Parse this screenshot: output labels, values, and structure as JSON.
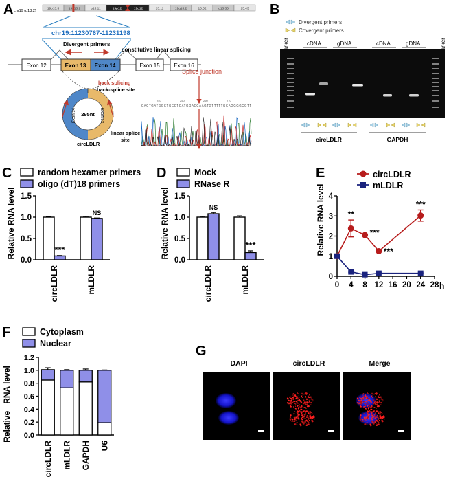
{
  "panels": {
    "A": {
      "letter": "A",
      "chrom_label": "chr19 (p13.2)",
      "bands": [
        "19p13.3",
        "19p13.2",
        "p13.11",
        "19p12",
        "19q12",
        "13.11",
        "19q13.2",
        "13.32",
        "q13.33",
        "13.43"
      ],
      "coord": "chr19:11230767-11231198",
      "divergent_primers": "Divergent primers",
      "constitutive": "constitutive linear splicing",
      "exons": [
        "Exon 12",
        "Exon 13",
        "Exon 14",
        "Exon 15",
        "Exon 16"
      ],
      "back_splicing": "back splicing",
      "back_splice_site": "back-splice site",
      "circle_size": "295nt",
      "circle_exon_left": "Exon 14",
      "circle_exon_right": "Exon 13",
      "linear_splice": "linear splice",
      "site": "site",
      "circ_name": "circLDLR",
      "splice_junction": "Splice junction",
      "seq_numbers": [
        "240",
        "250",
        "260",
        "270"
      ],
      "sequence": "CACTGATGGCTGCCTCATGGACCAAGTGTTTTTGCAGGGGCGTT",
      "colors": {
        "exon13": "#e8b96a",
        "exon14": "#4f87c8",
        "arrow": "#c0392b",
        "line": "#2a7fc1"
      }
    },
    "B": {
      "letter": "B",
      "legend_divergent": "Divergent primers",
      "legend_convergent": "Covergent primers",
      "lane_labels": [
        "marker",
        "cDNA",
        "gDNA",
        "cDNA",
        "gDNA",
        "marker"
      ],
      "group_labels": [
        "circLDLR",
        "GAPDH"
      ]
    },
    "C": {
      "letter": "C",
      "legend": [
        "random hexamer primers",
        "oligo (dT)18 primers"
      ],
      "ylabel": "Relative RNA level",
      "ticks": [
        "0.0",
        "0.5",
        "1.0",
        "1.5"
      ],
      "categories": [
        "circLDLR",
        "mLDLR"
      ],
      "annotations": [
        "***",
        "NS"
      ]
    },
    "D": {
      "letter": "D",
      "legend": [
        "Mock",
        "RNase R"
      ],
      "ylabel": "Relative RNA level",
      "ticks": [
        "0.0",
        "0.5",
        "1.0",
        "1.5"
      ],
      "categories": [
        "circLDLR",
        "mLDLR"
      ],
      "annotations": [
        "NS",
        "***"
      ]
    },
    "E": {
      "letter": "E",
      "legend": [
        "circLDLR",
        "mLDLR"
      ],
      "ylabel": "Relative RNA level",
      "yticks": [
        "0",
        "1",
        "2",
        "3",
        "4"
      ],
      "xticks": [
        "0",
        "4",
        "8",
        "12",
        "16",
        "20",
        "24",
        "28"
      ],
      "xunit": "h",
      "annotations": [
        "**",
        "***",
        "***",
        "***"
      ]
    },
    "F": {
      "letter": "F",
      "legend": [
        "Cytoplasm",
        "Nuclear"
      ],
      "ylabel": "Relative   RNA level",
      "ticks": [
        "0.0",
        "0.2",
        "0.4",
        "0.6",
        "0.8",
        "1.0",
        "1.2"
      ],
      "categories": [
        "circLDLR",
        "mLDLR",
        "GAPDH",
        "U6"
      ]
    },
    "G": {
      "letter": "G",
      "labels": [
        "DAPI",
        "circLDLR",
        "Merge"
      ]
    }
  },
  "chart_data": [
    {
      "type": "bar",
      "panel": "C",
      "categories": [
        "circLDLR",
        "mLDLR"
      ],
      "series": [
        {
          "name": "random hexamer primers",
          "values": [
            1.0,
            1.0
          ],
          "errors": [
            0.01,
            0.02
          ],
          "color": "#ffffff"
        },
        {
          "name": "oligo (dT)18 primers",
          "values": [
            0.09,
            0.97
          ],
          "errors": [
            0.01,
            0.01
          ],
          "color": "#8f8fe8"
        }
      ],
      "ylabel": "Relative RNA level",
      "ylim": [
        0,
        1.5
      ]
    },
    {
      "type": "bar",
      "panel": "D",
      "categories": [
        "circLDLR",
        "mLDLR"
      ],
      "series": [
        {
          "name": "Mock",
          "values": [
            1.0,
            1.0
          ],
          "errors": [
            0.02,
            0.03
          ],
          "color": "#ffffff"
        },
        {
          "name": "RNase R",
          "values": [
            1.08,
            0.17
          ],
          "errors": [
            0.03,
            0.04
          ],
          "color": "#8f8fe8"
        }
      ],
      "ylabel": "Relative RNA level",
      "ylim": [
        0,
        1.5
      ]
    },
    {
      "type": "line",
      "panel": "E",
      "x": [
        0,
        4,
        8,
        12,
        24
      ],
      "series": [
        {
          "name": "circLDLR",
          "values": [
            1.0,
            2.38,
            2.05,
            1.25,
            3.02
          ],
          "errors": [
            0.05,
            0.42,
            0.05,
            0.05,
            0.28
          ],
          "color": "#b71c1c",
          "marker": "circle"
        },
        {
          "name": "mLDLR",
          "values": [
            1.0,
            0.22,
            0.08,
            0.15,
            0.15
          ],
          "errors": [
            0.05,
            0.03,
            0.02,
            0.02,
            0.02
          ],
          "color": "#1a237e",
          "marker": "square"
        }
      ],
      "ylabel": "Relative RNA level",
      "xlim": [
        0,
        28
      ],
      "ylim": [
        0,
        4
      ]
    },
    {
      "type": "bar",
      "panel": "F",
      "stacked": true,
      "categories": [
        "circLDLR",
        "mLDLR",
        "GAPDH",
        "U6"
      ],
      "series": [
        {
          "name": "Cytoplasm",
          "values": [
            0.85,
            0.73,
            0.82,
            0.19
          ],
          "color": "#ffffff"
        },
        {
          "name": "Nuclear",
          "values": [
            0.16,
            0.27,
            0.18,
            0.81
          ],
          "color": "#8f8fe8"
        }
      ],
      "totals_error": [
        0.03,
        0.01,
        0.02,
        0.005
      ],
      "ylabel": "Relative   RNA level",
      "ylim": [
        0,
        1.2
      ]
    }
  ]
}
